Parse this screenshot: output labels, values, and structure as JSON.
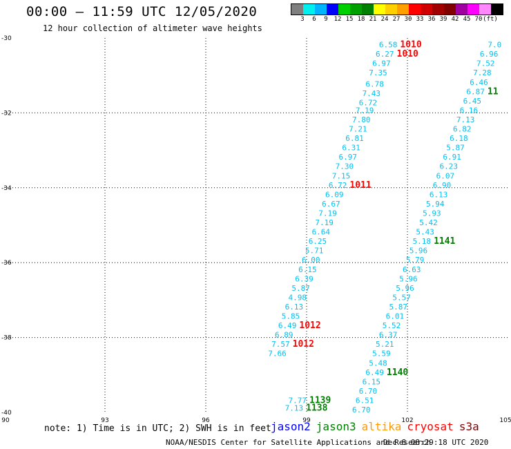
{
  "header": {
    "title": "00:00 – 11:59 UTC 12/05/2020",
    "subtitle": "12 hour collection of altimeter wave heights"
  },
  "colorbar": {
    "colors": [
      "#7f7f7f",
      "#00f0f0",
      "#00b4ff",
      "#0000ff",
      "#00d000",
      "#00a000",
      "#008000",
      "#ffff00",
      "#ffd000",
      "#ffa000",
      "#ff0000",
      "#d00000",
      "#a00000",
      "#800000",
      "#a000a0",
      "#ff00ff",
      "#ff88ff",
      "#000000"
    ],
    "labels": [
      "3",
      "6",
      "9",
      "12",
      "15",
      "18",
      "21",
      "24",
      "27",
      "30",
      "33",
      "36",
      "39",
      "42",
      "45",
      "70",
      "(ft)"
    ]
  },
  "map": {
    "lon_labels": [
      "90",
      "93",
      "96",
      "99",
      "102",
      "105"
    ],
    "lat_labels": [
      "-30",
      "-32",
      "-34",
      "-36",
      "-38",
      "-40"
    ],
    "lon_range": [
      90,
      105
    ],
    "lat_range": [
      -30,
      -40
    ],
    "colors": {
      "swh": "#00c0f0",
      "jason2": "#0000ff",
      "jason3": "#008000",
      "altika": "#ff9900",
      "cryosat": "#ff0000",
      "s3a": "#800000"
    }
  },
  "chart_data": {
    "type": "scatter",
    "x_label": "",
    "y_label": "",
    "xlim": [
      90,
      105
    ],
    "ylim": [
      -40,
      -30
    ],
    "series": [
      {
        "name": "cryosat",
        "points": [
          {
            "lon": 101.7,
            "lat": -30.25,
            "swh": "6.58",
            "hour": "1010"
          },
          {
            "lon": 101.6,
            "lat": -30.5,
            "swh": "6.27",
            "hour": "1010"
          },
          {
            "lon": 101.5,
            "lat": -30.75,
            "swh": "6.97"
          },
          {
            "lon": 101.4,
            "lat": -31.0,
            "swh": "7.35"
          },
          {
            "lon": 101.3,
            "lat": -31.3,
            "swh": "6.78"
          },
          {
            "lon": 101.2,
            "lat": -31.55,
            "swh": "7.43"
          },
          {
            "lon": 101.1,
            "lat": -31.8,
            "swh": "6.72"
          },
          {
            "lon": 101.0,
            "lat": -32.0,
            "swh": "7.19"
          },
          {
            "lon": 100.9,
            "lat": -32.25,
            "swh": "7.80"
          },
          {
            "lon": 100.8,
            "lat": -32.5,
            "swh": "7.21"
          },
          {
            "lon": 100.7,
            "lat": -32.75,
            "swh": "6.81"
          },
          {
            "lon": 100.6,
            "lat": -33.0,
            "swh": "6.31"
          },
          {
            "lon": 100.5,
            "lat": -33.25,
            "swh": "6.97"
          },
          {
            "lon": 100.4,
            "lat": -33.5,
            "swh": "7.30"
          },
          {
            "lon": 100.3,
            "lat": -33.75,
            "swh": "7.15"
          },
          {
            "lon": 100.2,
            "lat": -34.0,
            "swh": "6.72",
            "hour": "1011"
          },
          {
            "lon": 100.1,
            "lat": -34.25,
            "swh": "6.09"
          },
          {
            "lon": 100.0,
            "lat": -34.5,
            "swh": "6.67"
          },
          {
            "lon": 99.9,
            "lat": -34.75,
            "swh": "7.19"
          },
          {
            "lon": 99.8,
            "lat": -35.0,
            "swh": "7.19"
          },
          {
            "lon": 99.7,
            "lat": -35.25,
            "swh": "6.64"
          },
          {
            "lon": 99.6,
            "lat": -35.5,
            "swh": "6.25"
          },
          {
            "lon": 99.5,
            "lat": -35.75,
            "swh": "5.71"
          },
          {
            "lon": 99.4,
            "lat": -36.0,
            "swh": "6.00"
          },
          {
            "lon": 99.3,
            "lat": -36.25,
            "swh": "6.15"
          },
          {
            "lon": 99.2,
            "lat": -36.5,
            "swh": "6.39"
          },
          {
            "lon": 99.1,
            "lat": -36.75,
            "swh": "5.87"
          },
          {
            "lon": 99.0,
            "lat": -37.0,
            "swh": "4.98"
          },
          {
            "lon": 98.9,
            "lat": -37.25,
            "swh": "6.13"
          },
          {
            "lon": 98.8,
            "lat": -37.5,
            "swh": "5.85"
          },
          {
            "lon": 98.7,
            "lat": -37.75,
            "swh": "6.49",
            "hour": "1012"
          },
          {
            "lon": 98.6,
            "lat": -38.0,
            "swh": "6.89"
          },
          {
            "lon": 98.5,
            "lat": -38.25,
            "swh": "7.57",
            "hour": "1012"
          },
          {
            "lon": 98.4,
            "lat": -38.5,
            "swh": "7.66"
          }
        ]
      },
      {
        "name": "jason3",
        "points": [
          {
            "lon": 104.8,
            "lat": -30.25,
            "swh": "7.0"
          },
          {
            "lon": 104.7,
            "lat": -30.5,
            "swh": "6.96"
          },
          {
            "lon": 104.6,
            "lat": -30.75,
            "swh": "7.52"
          },
          {
            "lon": 104.5,
            "lat": -31.0,
            "swh": "7.28"
          },
          {
            "lon": 104.4,
            "lat": -31.25,
            "swh": "6.46"
          },
          {
            "lon": 104.3,
            "lat": -31.5,
            "swh": "6.87",
            "hour": "11"
          },
          {
            "lon": 104.2,
            "lat": -31.75,
            "swh": "6.45"
          },
          {
            "lon": 104.1,
            "lat": -32.0,
            "swh": "6.16"
          },
          {
            "lon": 104.0,
            "lat": -32.25,
            "swh": "7.13"
          },
          {
            "lon": 103.9,
            "lat": -32.5,
            "swh": "6.82"
          },
          {
            "lon": 103.8,
            "lat": -32.75,
            "swh": "6.18"
          },
          {
            "lon": 103.7,
            "lat": -33.0,
            "swh": "5.87"
          },
          {
            "lon": 103.6,
            "lat": -33.25,
            "swh": "6.91"
          },
          {
            "lon": 103.5,
            "lat": -33.5,
            "swh": "6.23"
          },
          {
            "lon": 103.4,
            "lat": -33.75,
            "swh": "6.07"
          },
          {
            "lon": 103.3,
            "lat": -34.0,
            "swh": "6.90"
          },
          {
            "lon": 103.2,
            "lat": -34.25,
            "swh": "6.13"
          },
          {
            "lon": 103.1,
            "lat": -34.5,
            "swh": "5.94"
          },
          {
            "lon": 103.0,
            "lat": -34.75,
            "swh": "5.93"
          },
          {
            "lon": 102.9,
            "lat": -35.0,
            "swh": "5.42"
          },
          {
            "lon": 102.8,
            "lat": -35.25,
            "swh": "5.43"
          },
          {
            "lon": 102.7,
            "lat": -35.5,
            "swh": "5.18",
            "hour": "1141"
          },
          {
            "lon": 102.6,
            "lat": -35.75,
            "swh": "5.96"
          },
          {
            "lon": 102.5,
            "lat": -36.0,
            "swh": "5.79"
          },
          {
            "lon": 102.4,
            "lat": -36.25,
            "swh": "6.63"
          },
          {
            "lon": 102.3,
            "lat": -36.5,
            "swh": "5.96"
          },
          {
            "lon": 102.2,
            "lat": -36.75,
            "swh": "5.96"
          },
          {
            "lon": 102.1,
            "lat": -37.0,
            "swh": "5.57"
          },
          {
            "lon": 102.0,
            "lat": -37.25,
            "swh": "5.87"
          },
          {
            "lon": 101.9,
            "lat": -37.5,
            "swh": "6.01"
          },
          {
            "lon": 101.8,
            "lat": -37.75,
            "swh": "5.52"
          },
          {
            "lon": 101.7,
            "lat": -38.0,
            "swh": "6.37"
          },
          {
            "lon": 101.6,
            "lat": -38.25,
            "swh": "5.21"
          },
          {
            "lon": 101.5,
            "lat": -38.5,
            "swh": "5.59"
          },
          {
            "lon": 101.4,
            "lat": -38.75,
            "swh": "5.48"
          },
          {
            "lon": 101.3,
            "lat": -39.0,
            "swh": "6.49",
            "hour": "1140"
          },
          {
            "lon": 101.2,
            "lat": -39.25,
            "swh": "6.15"
          },
          {
            "lon": 101.1,
            "lat": -39.5,
            "swh": "6.70"
          },
          {
            "lon": 101.0,
            "lat": -39.75,
            "swh": "6.51"
          },
          {
            "lon": 100.9,
            "lat": -40.0,
            "swh": "6.70"
          },
          {
            "lon": 99.0,
            "lat": -39.75,
            "swh": "7.77",
            "hour": "1139"
          },
          {
            "lon": 98.9,
            "lat": -39.95,
            "swh": "7.13",
            "hour": "1138"
          }
        ]
      }
    ],
    "annotations": [
      "1010",
      "1010",
      "1011",
      "1012",
      "1012",
      "1141",
      "1140",
      "1139",
      "1138",
      "11"
    ]
  },
  "note": "note: 1) Time is in UTC; 2) SWH is in feet",
  "legend": {
    "jason2": "jason2",
    "jason3": "jason3",
    "altika": "altika",
    "cryosat": "cryosat",
    "s3a": "s3a"
  },
  "footer": {
    "credit": "NOAA/NESDIS Center for Satellite Applications and Research",
    "date": "Dec  8 08:29:18 UTC 2020"
  }
}
